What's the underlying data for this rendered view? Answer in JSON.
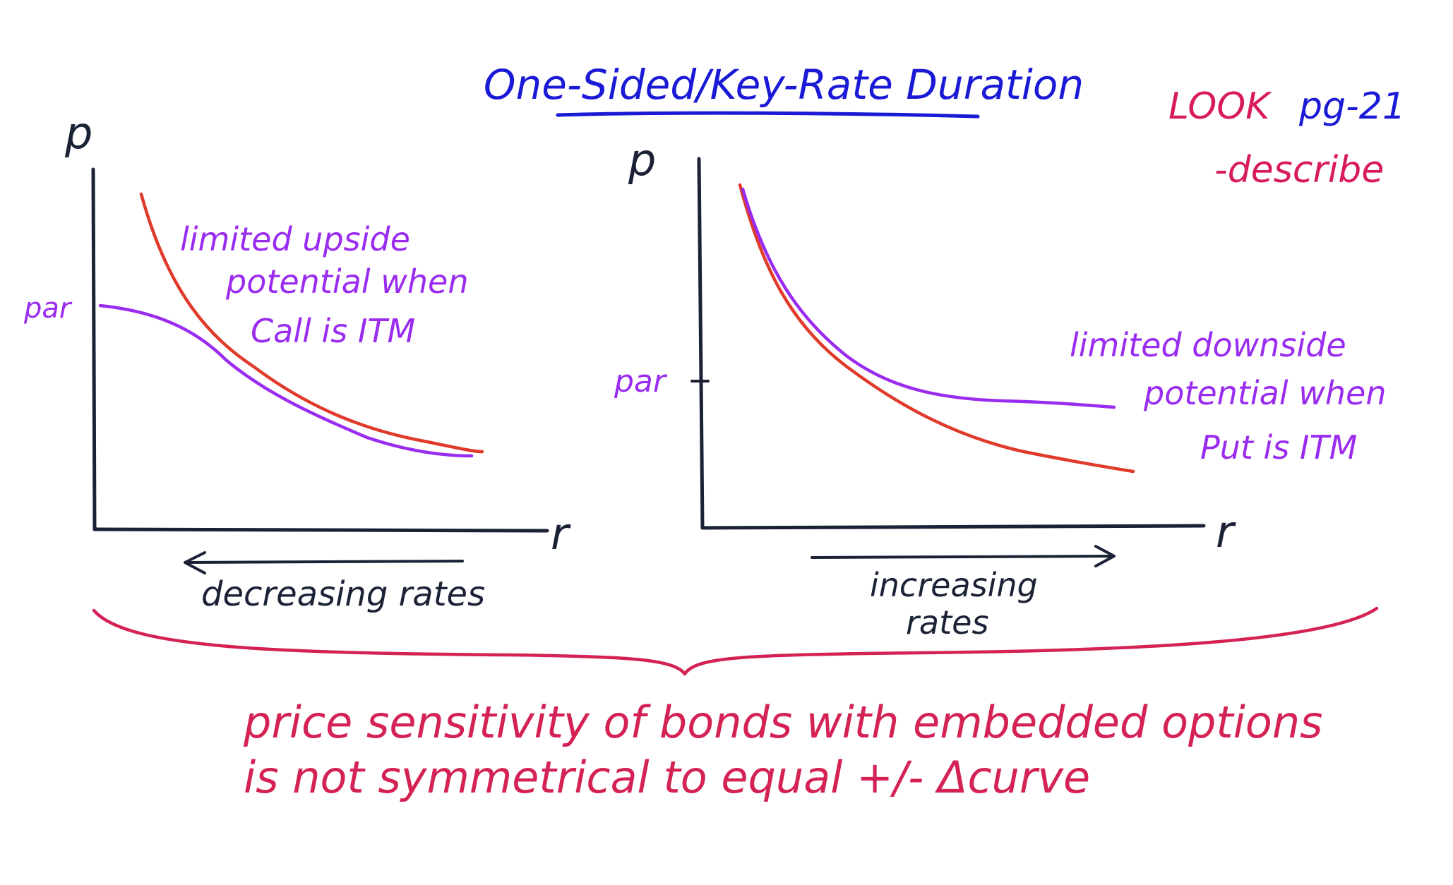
{
  "title": "One-Sided/Key-Rate Duration",
  "note": {
    "line1": "LOOK",
    "line1b": "pg-21",
    "line2": "-describe"
  },
  "colors": {
    "ink": "#1b2235",
    "blue": "#1a1ad6",
    "pink": "#d81b5a",
    "red": "#e03a2a",
    "purple": "#9a2cf0",
    "crimson": "#d42255"
  },
  "left_diagram": {
    "y_label": "p",
    "x_label": "r",
    "par_label": "par",
    "annotation": [
      "limited upside",
      "potential when",
      "Call is ITM"
    ],
    "direction_label": "decreasing rates"
  },
  "right_diagram": {
    "y_label": "p",
    "x_label": "r",
    "par_label": "par",
    "annotation": [
      "limited downside",
      "potential when",
      "Put is ITM"
    ],
    "direction_label": [
      "increasing",
      "rates"
    ]
  },
  "conclusion": [
    "price sensitivity of bonds with embedded options",
    "is not symmetrical to equal +/- Δcurve"
  ]
}
